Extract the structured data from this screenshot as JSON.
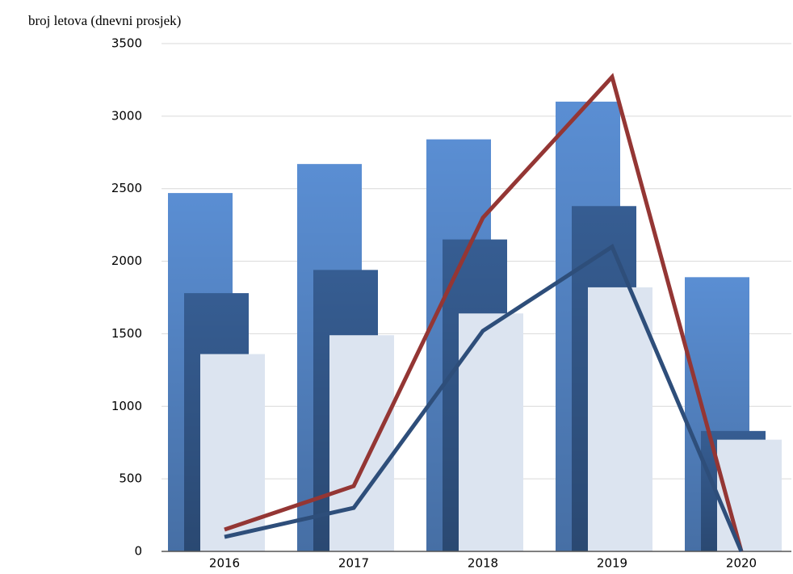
{
  "chart_data": {
    "type": "bar",
    "ylabel": "broj letova (dnevni prosjek)",
    "categories": [
      "2016",
      "2017",
      "2018",
      "2019",
      "2020"
    ],
    "series": [
      {
        "type": "bar",
        "color": "#5a8ed3",
        "values": [
          2470,
          2670,
          2840,
          3100,
          1890
        ]
      },
      {
        "type": "bar",
        "color": "#365d92",
        "values": [
          1780,
          1940,
          2150,
          2380,
          830
        ]
      },
      {
        "type": "bar",
        "color": "#dce4f0",
        "values": [
          1360,
          1490,
          1640,
          1820,
          770
        ]
      },
      {
        "type": "line",
        "color": "#943634",
        "values": [
          150,
          450,
          2300,
          3270,
          0
        ]
      },
      {
        "type": "line",
        "color": "#2e4e7a",
        "values": [
          100,
          300,
          1520,
          2100,
          0
        ]
      }
    ],
    "ylim": [
      0,
      3500
    ],
    "yticks": [
      0,
      500,
      1000,
      1500,
      2000,
      2500,
      3000,
      3500
    ],
    "grid": true
  }
}
